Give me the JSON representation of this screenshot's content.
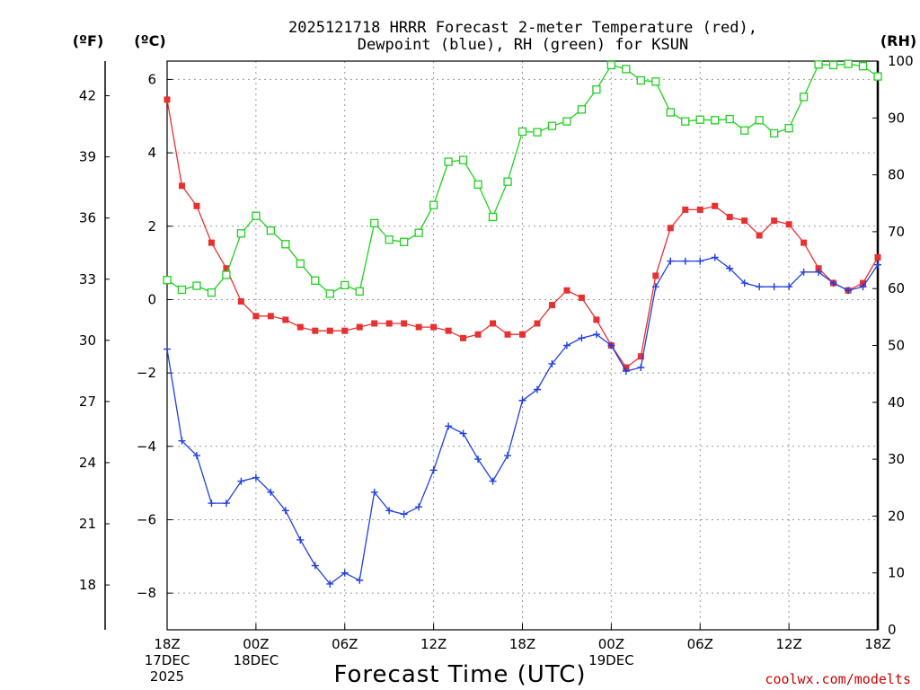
{
  "chart_data": {
    "type": "line",
    "title_lines": [
      "2025121718 HRRR Forecast 2-meter Temperature (red),",
      "Dewpoint (blue), RH (green) for KSUN"
    ],
    "xlabel": "Forecast Time (UTC)",
    "credit": "coolwx.com/modelts",
    "units": {
      "fahrenheit": "(ºF)",
      "celsius": "(ºC)",
      "rh": "(RH)"
    },
    "x_hours": {
      "min": 0,
      "max": 48
    },
    "x_ticks": [
      {
        "hour": 0,
        "lines": [
          "18Z",
          "17DEC",
          "2025"
        ]
      },
      {
        "hour": 6,
        "lines": [
          "00Z",
          "18DEC"
        ]
      },
      {
        "hour": 12,
        "lines": [
          "06Z"
        ]
      },
      {
        "hour": 18,
        "lines": [
          "12Z"
        ]
      },
      {
        "hour": 24,
        "lines": [
          "18Z"
        ]
      },
      {
        "hour": 30,
        "lines": [
          "00Z",
          "19DEC"
        ]
      },
      {
        "hour": 36,
        "lines": [
          "06Z"
        ]
      },
      {
        "hour": 42,
        "lines": [
          "12Z"
        ]
      },
      {
        "hour": 48,
        "lines": [
          "18Z"
        ]
      }
    ],
    "y_celsius": {
      "min": -9,
      "max": 6.5,
      "ticks": [
        6,
        4,
        2,
        0,
        -2,
        -4,
        -6,
        -8
      ],
      "tick_labels": [
        "6",
        "4",
        "2",
        "0",
        "−2",
        "−4",
        "−6",
        "−8"
      ]
    },
    "y_fahrenheit": {
      "ticks": [
        42,
        39,
        36,
        33,
        30,
        27,
        24,
        21,
        18
      ],
      "tick_labels": [
        "42",
        "39",
        "36",
        "33",
        "30",
        "27",
        "24",
        "21",
        "18"
      ]
    },
    "y_rh": {
      "min": 0,
      "max": 100,
      "ticks": [
        100,
        90,
        80,
        70,
        60,
        50,
        40,
        30,
        20,
        10,
        0
      ],
      "tick_labels": [
        "100",
        "90",
        "80",
        "70",
        "60",
        "50",
        "40",
        "30",
        "20",
        "10",
        "0"
      ]
    },
    "series": [
      {
        "name": "2-meter Temperature",
        "axis": "celsius",
        "color": "#e83030",
        "marker": "filled-square",
        "values": [
          5.45,
          3.1,
          2.55,
          1.55,
          0.85,
          -0.05,
          -0.45,
          -0.45,
          -0.55,
          -0.75,
          -0.85,
          -0.85,
          -0.85,
          -0.75,
          -0.65,
          -0.65,
          -0.65,
          -0.75,
          -0.75,
          -0.85,
          -1.05,
          -0.95,
          -0.65,
          -0.95,
          -0.95,
          -0.65,
          -0.15,
          0.25,
          0.05,
          -0.55,
          -1.25,
          -1.85,
          -1.55,
          0.65,
          1.95,
          2.45,
          2.45,
          2.55,
          2.25,
          2.15,
          1.75,
          2.15,
          2.05,
          1.55,
          0.85,
          0.45,
          0.25,
          0.45,
          1.15
        ]
      },
      {
        "name": "Dewpoint",
        "axis": "celsius",
        "color": "#2040e0",
        "marker": "plus",
        "values": [
          -1.35,
          -3.85,
          -4.25,
          -5.55,
          -5.55,
          -4.95,
          -4.85,
          -5.25,
          -5.75,
          -6.55,
          -7.25,
          -7.75,
          -7.45,
          -7.65,
          -5.25,
          -5.75,
          -5.85,
          -5.65,
          -4.65,
          -3.45,
          -3.65,
          -4.35,
          -4.95,
          -4.25,
          -2.75,
          -2.45,
          -1.75,
          -1.25,
          -1.05,
          -0.95,
          -1.25,
          -1.95,
          -1.85,
          0.35,
          1.05,
          1.05,
          1.05,
          1.15,
          0.85,
          0.45,
          0.35,
          0.35,
          0.35,
          0.75,
          0.75,
          0.45,
          0.25,
          0.35,
          0.95
        ]
      },
      {
        "name": "RH",
        "axis": "rh",
        "color": "#20d020",
        "marker": "open-square",
        "values": [
          61.5,
          59.8,
          60.5,
          59.3,
          62.4,
          69.7,
          72.8,
          70.2,
          67.8,
          64.4,
          61.4,
          59.1,
          60.6,
          59.5,
          71.5,
          68.6,
          68.2,
          69.8,
          74.7,
          82.3,
          82.6,
          78.3,
          72.6,
          78.8,
          87.6,
          87.5,
          88.6,
          89.4,
          91.5,
          95.0,
          99.3,
          98.6,
          96.6,
          96.4,
          91.0,
          89.4,
          89.7,
          89.6,
          89.8,
          87.8,
          89.6,
          87.3,
          88.2,
          93.7,
          99.4,
          99.3,
          99.5,
          99.1,
          97.3
        ]
      }
    ]
  }
}
